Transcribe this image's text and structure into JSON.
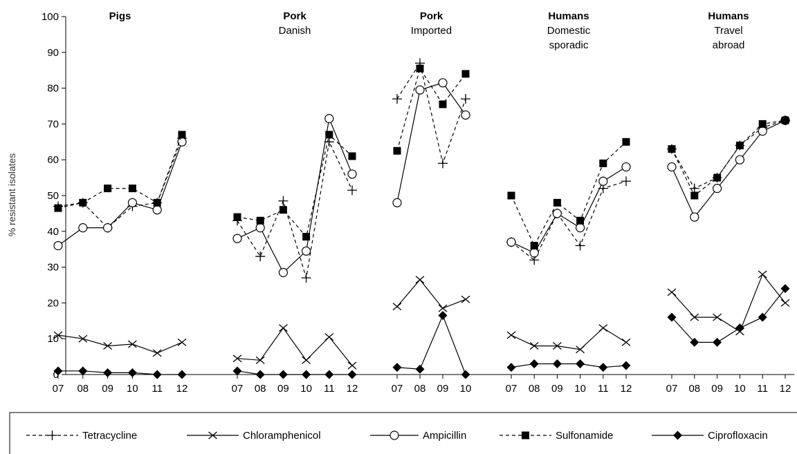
{
  "chart_data": {
    "type": "line",
    "ylabel": "% resistant isolates",
    "ylim": [
      0,
      100
    ],
    "yticks": [
      0,
      10,
      20,
      30,
      40,
      50,
      60,
      70,
      80,
      90,
      100
    ],
    "grid": false,
    "legend_position": "bottom",
    "series_styles": {
      "Tetracycline": {
        "line": "dashed",
        "marker": "plus",
        "color": "#000000"
      },
      "Chloramphenicol": {
        "line": "solid",
        "marker": "x",
        "color": "#000000"
      },
      "Ampicillin": {
        "line": "solid",
        "marker": "open-circle",
        "color": "#000000"
      },
      "Sulfonamide": {
        "line": "dashed",
        "marker": "filled-square",
        "color": "#000000"
      },
      "Ciprofloxacin": {
        "line": "solid",
        "marker": "filled-diamond",
        "color": "#000000"
      }
    },
    "panels": [
      {
        "title": "Pigs",
        "subtitle": [],
        "categories": [
          "07",
          "08",
          "09",
          "10",
          "11",
          "12"
        ],
        "series": [
          {
            "name": "Tetracycline",
            "values": [
              47,
              48,
              41,
              47,
              48,
              66
            ]
          },
          {
            "name": "Chloramphenicol",
            "values": [
              11,
              10,
              8,
              8.5,
              6,
              9
            ]
          },
          {
            "name": "Ampicillin",
            "values": [
              36,
              41,
              41,
              48,
              46,
              65
            ]
          },
          {
            "name": "Sulfonamide",
            "values": [
              46.5,
              48,
              52,
              52,
              48,
              67
            ]
          },
          {
            "name": "Ciprofloxacin",
            "values": [
              1,
              1,
              0.5,
              0.5,
              0,
              0
            ]
          }
        ]
      },
      {
        "title": "Pork",
        "subtitle": [
          "Danish"
        ],
        "categories": [
          "07",
          "08",
          "09",
          "10",
          "11",
          "12"
        ],
        "series": [
          {
            "name": "Tetracycline",
            "values": [
              43,
              33,
              48.5,
              27,
              65,
              51.5
            ]
          },
          {
            "name": "Chloramphenicol",
            "values": [
              4.5,
              4,
              13,
              4,
              10.5,
              2.5
            ]
          },
          {
            "name": "Ampicillin",
            "values": [
              38,
              41,
              28.5,
              34.5,
              71.5,
              56
            ]
          },
          {
            "name": "Sulfonamide",
            "values": [
              44,
              43,
              46,
              38.5,
              67,
              61
            ]
          },
          {
            "name": "Ciprofloxacin",
            "values": [
              1,
              0,
              0,
              0,
              0,
              0
            ]
          }
        ]
      },
      {
        "title": "Pork",
        "subtitle": [
          "Imported"
        ],
        "categories": [
          "07",
          "08",
          "09",
          "10"
        ],
        "series": [
          {
            "name": "Tetracycline",
            "values": [
              77,
              87,
              59,
              77
            ]
          },
          {
            "name": "Chloramphenicol",
            "values": [
              19,
              26.5,
              18.5,
              21
            ]
          },
          {
            "name": "Ampicillin",
            "values": [
              48,
              79.5,
              81.5,
              72.5
            ]
          },
          {
            "name": "Sulfonamide",
            "values": [
              62.5,
              85.5,
              75.5,
              84
            ]
          },
          {
            "name": "Ciprofloxacin",
            "values": [
              2,
              1.5,
              16.5,
              0
            ]
          }
        ]
      },
      {
        "title": "Humans",
        "subtitle": [
          "Domestic",
          "sporadic"
        ],
        "categories": [
          "07",
          "08",
          "09",
          "10",
          "11",
          "12"
        ],
        "series": [
          {
            "name": "Tetracycline",
            "values": [
              37,
              32,
              45,
              36,
              52,
              54
            ]
          },
          {
            "name": "Chloramphenicol",
            "values": [
              11,
              8,
              8,
              7,
              13,
              9
            ]
          },
          {
            "name": "Ampicillin",
            "values": [
              37,
              34,
              45,
              41,
              54,
              58
            ]
          },
          {
            "name": "Sulfonamide",
            "values": [
              50,
              36,
              48,
              43,
              59,
              65
            ]
          },
          {
            "name": "Ciprofloxacin",
            "values": [
              2,
              3,
              3,
              3,
              2,
              2.5
            ]
          }
        ]
      },
      {
        "title": "Humans",
        "subtitle": [
          "Travel",
          "abroad"
        ],
        "categories": [
          "07",
          "08",
          "09",
          "10",
          "11",
          "12"
        ],
        "series": [
          {
            "name": "Tetracycline",
            "values": [
              63,
              52,
              55,
              64,
              69,
              71
            ]
          },
          {
            "name": "Chloramphenicol",
            "values": [
              23,
              16,
              16,
              12,
              28,
              20
            ]
          },
          {
            "name": "Ampicillin",
            "values": [
              58,
              44,
              52,
              60,
              68,
              71
            ]
          },
          {
            "name": "Sulfonamide",
            "values": [
              63,
              50,
              55,
              64,
              70,
              71
            ]
          },
          {
            "name": "Ciprofloxacin",
            "values": [
              16,
              9,
              9,
              13,
              16,
              24
            ]
          }
        ]
      }
    ],
    "legend": [
      "Tetracycline",
      "Chloramphenicol",
      "Ampicillin",
      "Sulfonamide",
      "Ciprofloxacin"
    ]
  }
}
